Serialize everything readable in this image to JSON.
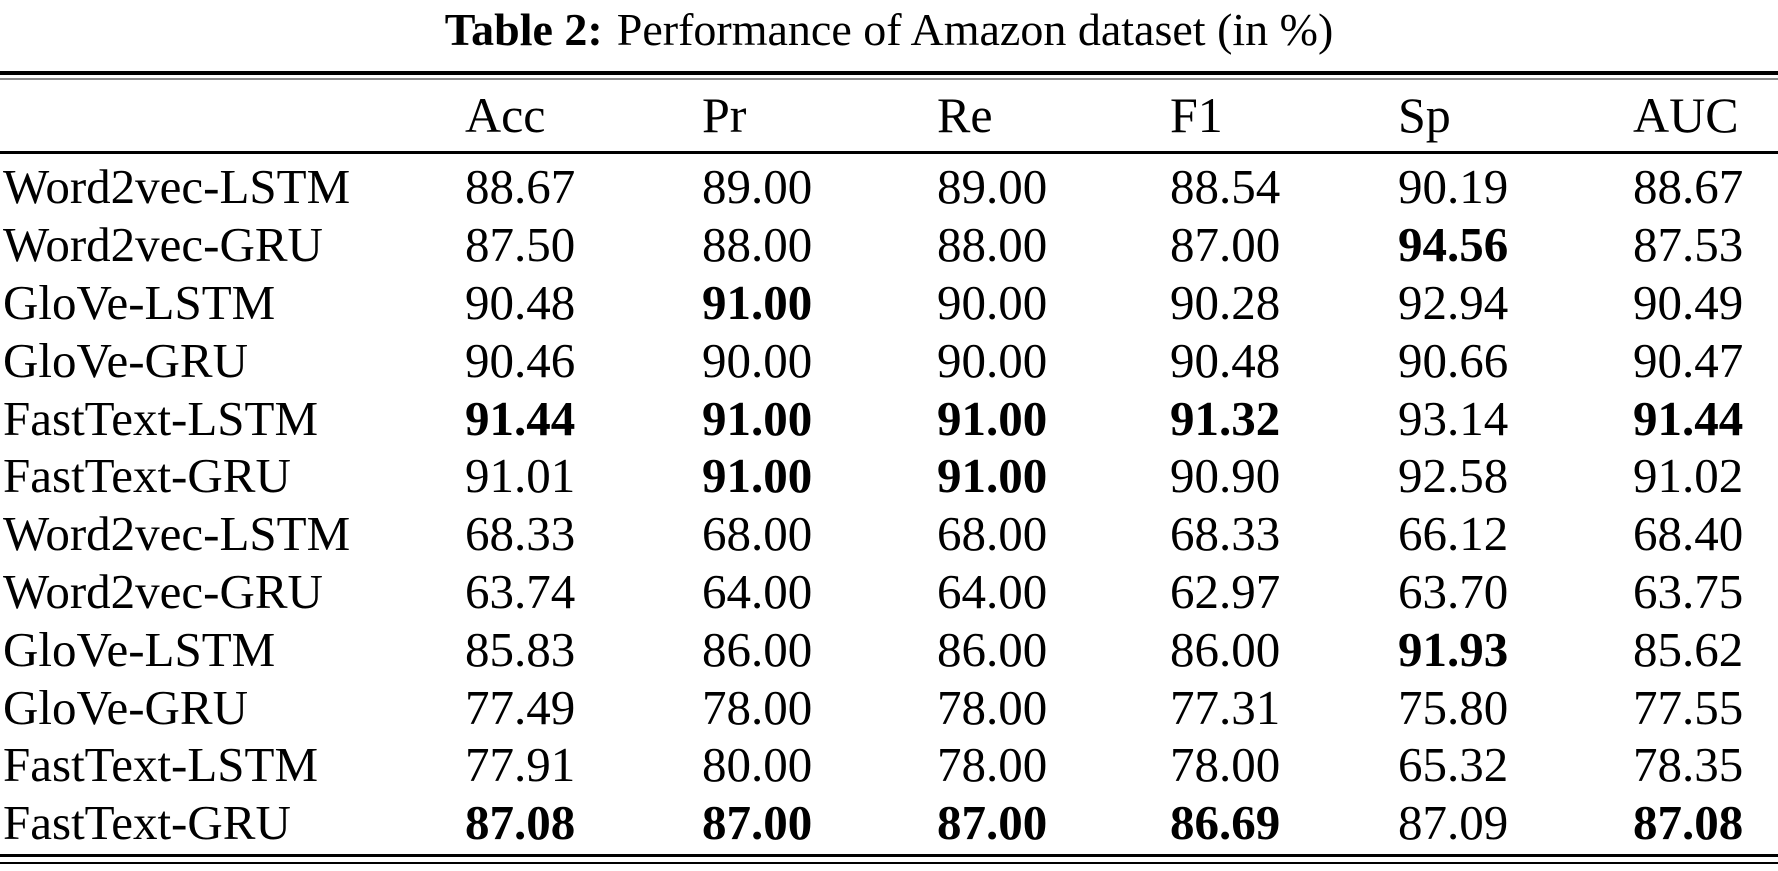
{
  "title": {
    "prefix": "Table 2:",
    "text": "Performance of Amazon dataset (in %)"
  },
  "colors": {
    "text": "#000000",
    "background": "#ffffff",
    "rule": "#000000"
  },
  "table": {
    "columns": [
      "Acc",
      "Pr",
      "Re",
      "F1",
      "Sp",
      "AUC"
    ],
    "rows": [
      {
        "label": "Word2vec-LSTM",
        "cells": [
          {
            "text": "88.67",
            "bold": false
          },
          {
            "text": "89.00",
            "bold": false
          },
          {
            "text": "89.00",
            "bold": false
          },
          {
            "text": "88.54",
            "bold": false
          },
          {
            "text": "90.19",
            "bold": false
          },
          {
            "text": "88.67",
            "bold": false
          }
        ]
      },
      {
        "label": "Word2vec-GRU",
        "cells": [
          {
            "text": "87.50",
            "bold": false
          },
          {
            "text": "88.00",
            "bold": false
          },
          {
            "text": "88.00",
            "bold": false
          },
          {
            "text": "87.00",
            "bold": false
          },
          {
            "text": "94.56",
            "bold": true
          },
          {
            "text": "87.53",
            "bold": false
          }
        ]
      },
      {
        "label": "GloVe-LSTM",
        "cells": [
          {
            "text": "90.48",
            "bold": false
          },
          {
            "text": "91.00",
            "bold": true
          },
          {
            "text": "90.00",
            "bold": false
          },
          {
            "text": "90.28",
            "bold": false
          },
          {
            "text": "92.94",
            "bold": false
          },
          {
            "text": "90.49",
            "bold": false
          }
        ]
      },
      {
        "label": "GloVe-GRU",
        "cells": [
          {
            "text": "90.46",
            "bold": false
          },
          {
            "text": "90.00",
            "bold": false
          },
          {
            "text": "90.00",
            "bold": false
          },
          {
            "text": "90.48",
            "bold": false
          },
          {
            "text": "90.66",
            "bold": false
          },
          {
            "text": "90.47",
            "bold": false
          }
        ]
      },
      {
        "label": "FastText-LSTM",
        "cells": [
          {
            "text": "91.44",
            "bold": true
          },
          {
            "text": "91.00",
            "bold": true
          },
          {
            "text": "91.00",
            "bold": true
          },
          {
            "text": "91.32",
            "bold": true
          },
          {
            "text": "93.14",
            "bold": false
          },
          {
            "text": "91.44",
            "bold": true
          }
        ]
      },
      {
        "label": "FastText-GRU",
        "cells": [
          {
            "text": "91.01",
            "bold": false
          },
          {
            "text": "91.00",
            "bold": true
          },
          {
            "text": "91.00",
            "bold": true
          },
          {
            "text": "90.90",
            "bold": false
          },
          {
            "text": "92.58",
            "bold": false
          },
          {
            "text": "91.02",
            "bold": false
          }
        ]
      },
      {
        "label": "Word2vec-LSTM",
        "cells": [
          {
            "text": "68.33",
            "bold": false
          },
          {
            "text": "68.00",
            "bold": false
          },
          {
            "text": "68.00",
            "bold": false
          },
          {
            "text": "68.33",
            "bold": false
          },
          {
            "text": "66.12",
            "bold": false
          },
          {
            "text": "68.40",
            "bold": false
          }
        ]
      },
      {
        "label": "Word2vec-GRU",
        "cells": [
          {
            "text": "63.74",
            "bold": false
          },
          {
            "text": "64.00",
            "bold": false
          },
          {
            "text": "64.00",
            "bold": false
          },
          {
            "text": "62.97",
            "bold": false
          },
          {
            "text": "63.70",
            "bold": false
          },
          {
            "text": "63.75",
            "bold": false
          }
        ]
      },
      {
        "label": "GloVe-LSTM",
        "cells": [
          {
            "text": "85.83",
            "bold": false
          },
          {
            "text": "86.00",
            "bold": false
          },
          {
            "text": "86.00",
            "bold": false
          },
          {
            "text": "86.00",
            "bold": false
          },
          {
            "text": "91.93",
            "bold": true
          },
          {
            "text": "85.62",
            "bold": false
          }
        ]
      },
      {
        "label": "GloVe-GRU",
        "cells": [
          {
            "text": "77.49",
            "bold": false
          },
          {
            "text": "78.00",
            "bold": false
          },
          {
            "text": "78.00",
            "bold": false
          },
          {
            "text": "77.31",
            "bold": false
          },
          {
            "text": "75.80",
            "bold": false
          },
          {
            "text": "77.55",
            "bold": false
          }
        ]
      },
      {
        "label": "FastText-LSTM",
        "cells": [
          {
            "text": "77.91",
            "bold": false
          },
          {
            "text": "80.00",
            "bold": false
          },
          {
            "text": "78.00",
            "bold": false
          },
          {
            "text": "78.00",
            "bold": false
          },
          {
            "text": "65.32",
            "bold": false
          },
          {
            "text": "78.35",
            "bold": false
          }
        ]
      },
      {
        "label": "FastText-GRU",
        "cells": [
          {
            "text": "87.08",
            "bold": true
          },
          {
            "text": "87.00",
            "bold": true
          },
          {
            "text": "87.00",
            "bold": true
          },
          {
            "text": "86.69",
            "bold": true
          },
          {
            "text": "87.09",
            "bold": false
          },
          {
            "text": "87.08",
            "bold": true
          }
        ]
      }
    ]
  }
}
